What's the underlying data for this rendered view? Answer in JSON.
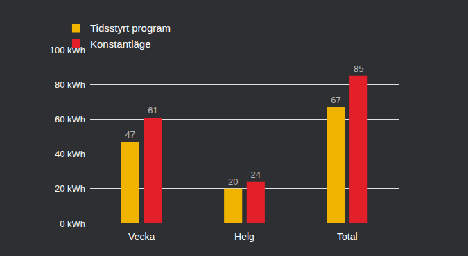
{
  "chart_data": {
    "type": "bar",
    "categories": [
      "Vecka",
      "Helg",
      "Total"
    ],
    "series": [
      {
        "name": "Tidsstyrt program",
        "color": "#f0b400",
        "values": [
          47,
          20,
          67
        ]
      },
      {
        "name": "Konstantläge",
        "color": "#e3202a",
        "values": [
          61,
          24,
          85
        ]
      }
    ],
    "ylim": [
      0,
      100
    ],
    "yticks": [
      {
        "value": 0,
        "label": "0 kWh"
      },
      {
        "value": 20,
        "label": "20 kWh"
      },
      {
        "value": 40,
        "label": "40 kWh"
      },
      {
        "value": 60,
        "label": "60 kWh"
      },
      {
        "value": 80,
        "label": "80 kWh"
      },
      {
        "value": 100,
        "label": "100 kWh"
      }
    ],
    "grid": true,
    "legend": "top",
    "data_labels": true
  }
}
